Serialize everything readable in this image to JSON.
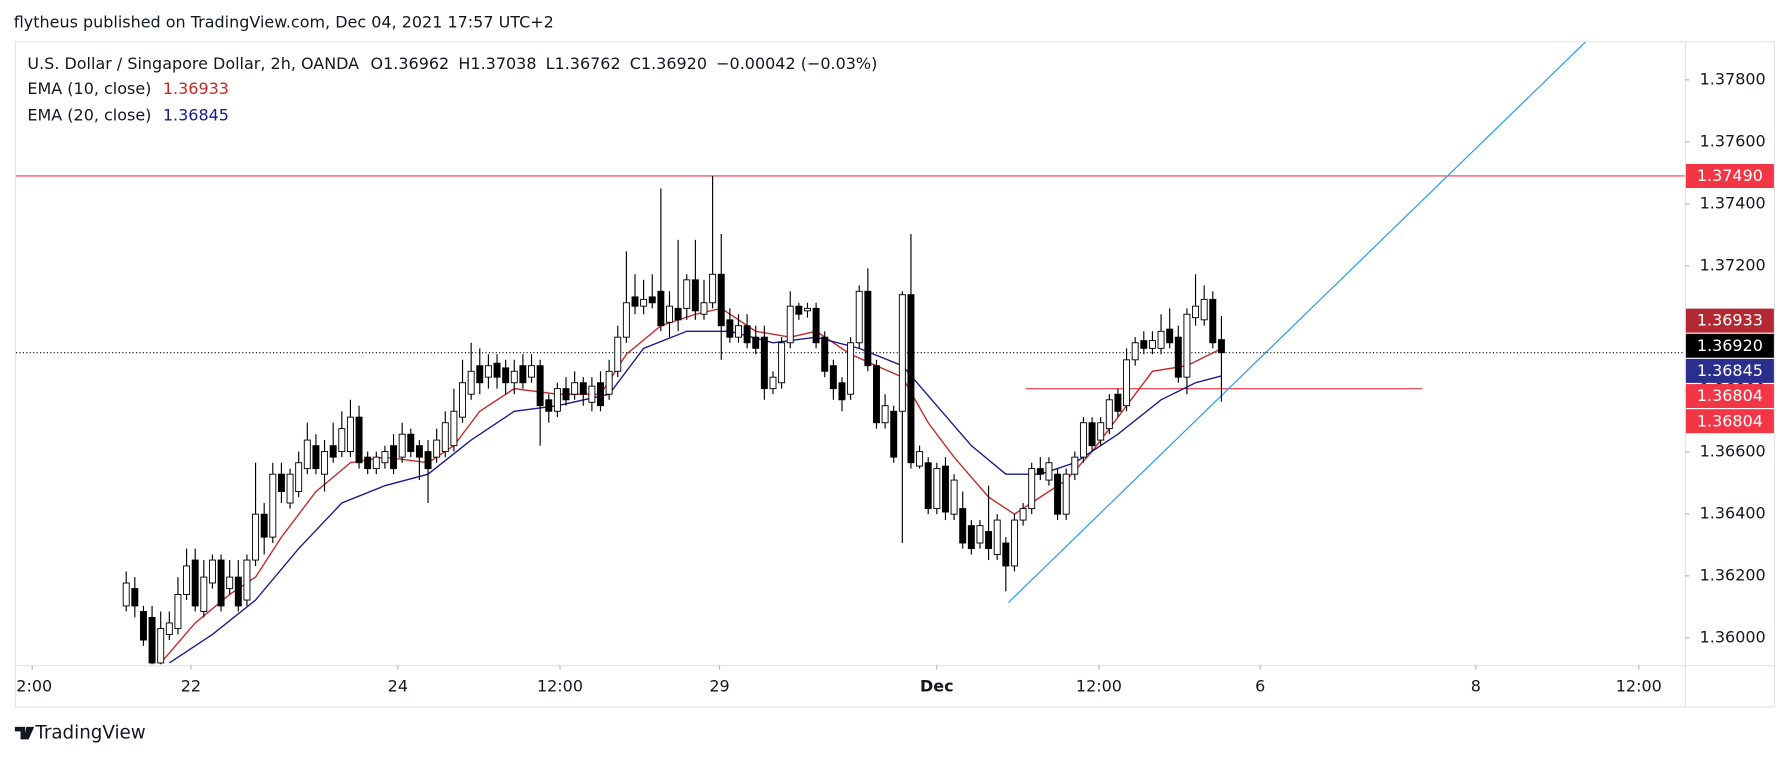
{
  "header": {
    "title": "flytheus published on TradingView.com, Dec 04, 2021 17:57 UTC+2"
  },
  "footer": {
    "brand": "TradingView"
  },
  "chart_data": {
    "type": "candlestick",
    "legend": {
      "symbol": "U.S. Dollar / Singapore Dollar, 2h, OANDA",
      "ohlc": [
        {
          "key": "O",
          "value": "1.36962"
        },
        {
          "key": "H",
          "value": "1.37038"
        },
        {
          "key": "L",
          "value": "1.36762"
        },
        {
          "key": "C",
          "value": "1.36920"
        }
      ],
      "change": "−0.00042 (−0.03%)"
    },
    "up_color": "#ffffff",
    "down_color": "#000000",
    "outline_color": "#000000",
    "candles": {
      "x": [
        10,
        11,
        12,
        13,
        14,
        15,
        16,
        17,
        18,
        19,
        20,
        21,
        22,
        23,
        24,
        25,
        26,
        27,
        28,
        29,
        30,
        31,
        32,
        33,
        34,
        35,
        36,
        37,
        38,
        39,
        40,
        41,
        42,
        43,
        44,
        45,
        46,
        47,
        48,
        49,
        50,
        51,
        52,
        53,
        54,
        55,
        56,
        57,
        58,
        59,
        60,
        61,
        62,
        63,
        64,
        65,
        66,
        67,
        68,
        69,
        70,
        71,
        72,
        73,
        74,
        75,
        76,
        77,
        78,
        79,
        80,
        81,
        82,
        83,
        84,
        85,
        86,
        87,
        88,
        89,
        90,
        91,
        92,
        93,
        94,
        95,
        96,
        97,
        98,
        99,
        100,
        101,
        102,
        103,
        104,
        105,
        106,
        107,
        108,
        109,
        110,
        111,
        112,
        113,
        114,
        115,
        116,
        117,
        118,
        119,
        120,
        121,
        122,
        123,
        124,
        125,
        126,
        127,
        128,
        129,
        130,
        131,
        132,
        133,
        134,
        135,
        136,
        137
      ],
      "open": [
        1.36103,
        1.36159,
        1.36085,
        1.36066,
        1.35919,
        1.36011,
        1.3603,
        1.3614,
        1.36251,
        1.36085,
        1.36177,
        1.36251,
        1.36159,
        1.36196,
        1.36122,
        1.36251,
        1.36399,
        1.36325,
        1.36528,
        1.36435,
        1.36472,
        1.36546,
        1.3662,
        1.36528,
        1.3662,
        1.36601,
        1.36601,
        1.36712,
        1.36583,
        1.36546,
        1.36565,
        1.3662,
        1.36583,
        1.36657,
        1.3662,
        1.36601,
        1.36583,
        1.36601,
        1.3662,
        1.36712,
        1.36786,
        1.36878,
        1.36841,
        1.36886,
        1.36871,
        1.36823,
        1.36878,
        1.36841,
        1.36878,
        1.36768,
        1.36731,
        1.36804,
        1.36786,
        1.36823,
        1.3676,
        1.36823,
        1.36786,
        1.3686,
        1.3697,
        1.371,
        1.3707,
        1.371,
        1.37118,
        1.37018,
        1.37063,
        1.37063,
        1.37155,
        1.37044,
        1.37081,
        1.37173,
        1.37026,
        1.3697,
        1.37007,
        1.3697,
        1.3697,
        1.36804,
        1.36823,
        1.36952,
        1.3707,
        1.37055,
        1.37063,
        1.3697,
        1.36878,
        1.36823,
        1.36786,
        1.36952,
        1.37118,
        1.36878,
        1.36694,
        1.36731,
        1.36731,
        1.37107,
        1.36554,
        1.36565,
        1.36417,
        1.36554,
        1.36399,
        1.36417,
        1.36362,
        1.36306,
        1.36343,
        1.36269,
        1.36306,
        1.36232,
        1.3638,
        1.36417,
        1.36546,
        1.36509,
        1.36528,
        1.36399,
        1.36528,
        1.36583,
        1.36694,
        1.36638,
        1.36675,
        1.36786,
        1.36749,
        1.36897,
        1.36959,
        1.36934,
        1.36934,
        1.36996,
        1.3697,
        1.36841,
        1.37033,
        1.37026,
        1.37092,
        1.36962
      ],
      "high": [
        1.36214,
        1.36196,
        1.36103,
        1.36103,
        1.36085,
        1.36085,
        1.36196,
        1.36288,
        1.36288,
        1.36251,
        1.36269,
        1.36269,
        1.36251,
        1.36251,
        1.36269,
        1.36565,
        1.36435,
        1.36565,
        1.36565,
        1.36546,
        1.36601,
        1.36694,
        1.36657,
        1.36638,
        1.36694,
        1.36731,
        1.36768,
        1.36749,
        1.36601,
        1.36601,
        1.3662,
        1.36657,
        1.36694,
        1.36675,
        1.36638,
        1.36638,
        1.36675,
        1.36731,
        1.36804,
        1.36897,
        1.36952,
        1.36934,
        1.36915,
        1.36915,
        1.36897,
        1.36897,
        1.36915,
        1.36915,
        1.36897,
        1.36786,
        1.36823,
        1.36841,
        1.3686,
        1.36841,
        1.36841,
        1.3686,
        1.36897,
        1.37007,
        1.37247,
        1.37173,
        1.37155,
        1.37173,
        1.3745,
        1.37118,
        1.37284,
        1.37173,
        1.37284,
        1.37155,
        1.3749,
        1.37303,
        1.37063,
        1.37044,
        1.37044,
        1.37007,
        1.37007,
        1.3686,
        1.3697,
        1.37118,
        1.37081,
        1.37081,
        1.37081,
        1.36989,
        1.36897,
        1.36841,
        1.3697,
        1.37137,
        1.37192,
        1.36897,
        1.36786,
        1.36749,
        1.37118,
        1.37303,
        1.3662,
        1.36583,
        1.36565,
        1.36583,
        1.36528,
        1.36472,
        1.3638,
        1.3638,
        1.36491,
        1.36399,
        1.36325,
        1.36399,
        1.36435,
        1.36565,
        1.36583,
        1.36583,
        1.36546,
        1.36546,
        1.36601,
        1.36712,
        1.36712,
        1.36712,
        1.36786,
        1.36804,
        1.36934,
        1.3697,
        1.36989,
        1.36989,
        1.37044,
        1.37063,
        1.37007,
        1.37063,
        1.37173,
        1.37137,
        1.37118,
        1.37038
      ],
      "low": [
        1.36085,
        1.36066,
        1.35974,
        1.35915,
        1.35915,
        1.35993,
        1.36011,
        1.36122,
        1.36085,
        1.36066,
        1.36159,
        1.36085,
        1.3614,
        1.36085,
        1.36103,
        1.36232,
        1.36269,
        1.36306,
        1.36435,
        1.36417,
        1.36454,
        1.36528,
        1.36528,
        1.36472,
        1.36565,
        1.36583,
        1.36583,
        1.36546,
        1.36528,
        1.36528,
        1.36546,
        1.36528,
        1.36565,
        1.36583,
        1.36509,
        1.36435,
        1.36565,
        1.36583,
        1.36601,
        1.36694,
        1.36768,
        1.36786,
        1.36804,
        1.36804,
        1.36786,
        1.36786,
        1.36804,
        1.36823,
        1.3662,
        1.36694,
        1.36712,
        1.36749,
        1.36768,
        1.36749,
        1.36731,
        1.36731,
        1.36768,
        1.36841,
        1.36952,
        1.37044,
        1.37044,
        1.37063,
        1.36989,
        1.3697,
        1.36989,
        1.37026,
        1.37026,
        1.37026,
        1.37063,
        1.36897,
        1.36952,
        1.36952,
        1.36934,
        1.36915,
        1.36768,
        1.36786,
        1.36804,
        1.36934,
        1.37026,
        1.37033,
        1.36934,
        1.36841,
        1.36768,
        1.36731,
        1.36768,
        1.36934,
        1.3686,
        1.36675,
        1.36675,
        1.36565,
        1.36306,
        1.36546,
        1.36546,
        1.36399,
        1.36399,
        1.3638,
        1.3638,
        1.36288,
        1.36269,
        1.36288,
        1.36251,
        1.36251,
        1.3615,
        1.36214,
        1.36362,
        1.36399,
        1.36509,
        1.36491,
        1.3638,
        1.3638,
        1.36509,
        1.36565,
        1.36601,
        1.3662,
        1.36657,
        1.36712,
        1.36731,
        1.36878,
        1.36915,
        1.36915,
        1.36915,
        1.36934,
        1.36823,
        1.36786,
        1.37007,
        1.37007,
        1.36934,
        1.36762
      ],
      "close": [
        1.36177,
        1.36103,
        1.35993,
        1.35919,
        1.3603,
        1.36048,
        1.3614,
        1.36232,
        1.36103,
        1.36196,
        1.36251,
        1.36103,
        1.36196,
        1.36103,
        1.36251,
        1.36399,
        1.36325,
        1.36528,
        1.36472,
        1.36528,
        1.36565,
        1.36638,
        1.36546,
        1.36601,
        1.36583,
        1.36675,
        1.36712,
        1.36565,
        1.36546,
        1.36583,
        1.36601,
        1.36546,
        1.36657,
        1.36601,
        1.36583,
        1.36546,
        1.36638,
        1.36694,
        1.36731,
        1.36823,
        1.3686,
        1.36823,
        1.36878,
        1.36841,
        1.36823,
        1.3686,
        1.36823,
        1.36878,
        1.36749,
        1.36731,
        1.36804,
        1.36768,
        1.36823,
        1.36786,
        1.36812,
        1.36749,
        1.3686,
        1.3697,
        1.37081,
        1.3707,
        1.37092,
        1.37081,
        1.37007,
        1.3707,
        1.37026,
        1.37155,
        1.37055,
        1.37081,
        1.37173,
        1.37007,
        1.3697,
        1.37007,
        1.36952,
        1.36934,
        1.36804,
        1.36841,
        1.36952,
        1.3707,
        1.37044,
        1.37063,
        1.36952,
        1.3686,
        1.36804,
        1.36768,
        1.36952,
        1.37118,
        1.36878,
        1.36694,
        1.36749,
        1.36583,
        1.37107,
        1.36565,
        1.36601,
        1.36417,
        1.36546,
        1.36406,
        1.36509,
        1.36306,
        1.36288,
        1.36362,
        1.36288,
        1.3638,
        1.36232,
        1.3638,
        1.36417,
        1.36546,
        1.36528,
        1.36565,
        1.36399,
        1.36528,
        1.36583,
        1.36694,
        1.3662,
        1.36694,
        1.36768,
        1.36731,
        1.36897,
        1.36952,
        1.36934,
        1.36959,
        1.36989,
        1.36952,
        1.36841,
        1.37044,
        1.3707,
        1.37092,
        1.36952,
        1.3692
      ]
    },
    "series": [
      {
        "name": "EMA (10, close)",
        "color": "#c62828",
        "legend_value": "1.36933",
        "x": [
          14,
          18,
          22,
          25,
          28,
          32,
          36,
          40,
          45,
          48,
          51,
          55,
          60,
          65,
          68,
          72,
          76,
          79,
          83,
          87,
          90,
          94,
          97,
          100,
          103,
          106,
          110,
          113,
          116,
          119,
          122,
          126,
          129,
          133,
          137
        ],
        "values": [
          1.35919,
          1.36048,
          1.3614,
          1.36196,
          1.36325,
          1.36472,
          1.36565,
          1.36583,
          1.36565,
          1.3662,
          1.36731,
          1.36804,
          1.36786,
          1.36786,
          1.36915,
          1.37007,
          1.37044,
          1.37063,
          1.36989,
          1.3697,
          1.36989,
          1.36915,
          1.36878,
          1.36841,
          1.36694,
          1.36583,
          1.36454,
          1.36399,
          1.36454,
          1.36509,
          1.36601,
          1.36749,
          1.3686,
          1.36878,
          1.36933
        ]
      },
      {
        "name": "EMA (20, close)",
        "color": "#1a1a8c",
        "legend_value": "1.36845",
        "x": [
          15,
          20,
          25,
          30,
          35,
          40,
          45,
          50,
          55,
          60,
          66,
          70,
          75,
          80,
          85,
          90,
          95,
          100,
          104,
          108,
          112,
          116,
          120,
          125,
          130,
          134,
          137
        ],
        "values": [
          1.35919,
          1.36011,
          1.36122,
          1.36288,
          1.36435,
          1.36491,
          1.36528,
          1.36638,
          1.36731,
          1.36749,
          1.36786,
          1.36934,
          1.36989,
          1.36989,
          1.36952,
          1.3697,
          1.36934,
          1.36878,
          1.36749,
          1.3662,
          1.36528,
          1.36528,
          1.36565,
          1.36657,
          1.36768,
          1.36823,
          1.36845
        ]
      }
    ],
    "drawings": [
      {
        "kind": "horizontal",
        "value": 1.3749,
        "color": "#f23645"
      },
      {
        "kind": "segment",
        "x": [
          114.3,
          160.3
        ],
        "values": [
          1.36804,
          1.36804
        ],
        "color": "#f23645"
      },
      {
        "kind": "segment",
        "x": [
          112.3,
          179.2
        ],
        "values": [
          1.36114,
          1.37922
        ],
        "color": "#2196f3"
      }
    ],
    "price_labels_top": [
      {
        "value": 1.3749,
        "label": "1.37490",
        "color": "#f23645"
      }
    ],
    "price_labels": [
      {
        "value": 1.36933,
        "label": "1.36933",
        "color": "#b22833"
      },
      {
        "value": 1.3692,
        "label": "1.36920",
        "color": "#000000",
        "line": "dotted"
      },
      {
        "value": 1.36845,
        "label": "1.36845",
        "color": "#2a2e8c"
      },
      {
        "value": 1.36804,
        "label": "1.36804",
        "color": "#f23645"
      },
      {
        "value": 1.36804,
        "label": "1.36804",
        "color": "#f23645"
      }
    ],
    "xlim": [
      -2.78,
      190.73
    ],
    "xticks": [
      {
        "value": -0.9,
        "label": "2:00"
      },
      {
        "value": 17.5,
        "label": "22"
      },
      {
        "value": 41.5,
        "label": "24"
      },
      {
        "value": 60.3,
        "label": "12:00"
      },
      {
        "value": 78.8,
        "label": "29"
      },
      {
        "value": 104,
        "label": "Dec"
      },
      {
        "value": 122.8,
        "label": "12:00"
      },
      {
        "value": 141.5,
        "label": "6"
      },
      {
        "value": 166.5,
        "label": "8"
      },
      {
        "value": 185.4,
        "label": "12:00"
      }
    ],
    "ylim": [
      1.35912,
      1.37925
    ],
    "yticks": [
      {
        "value": 1.36,
        "label": "1.36000"
      },
      {
        "value": 1.362,
        "label": "1.36200"
      },
      {
        "value": 1.364,
        "label": "1.36400"
      },
      {
        "value": 1.366,
        "label": "1.36600"
      },
      {
        "value": 1.368,
        "label": "1.36800"
      },
      {
        "value": 1.37,
        "label": "1.37000"
      },
      {
        "value": 1.372,
        "label": "1.37200"
      },
      {
        "value": 1.374,
        "label": "1.37400"
      },
      {
        "value": 1.376,
        "label": "1.37600"
      },
      {
        "value": 1.378,
        "label": "1.37800"
      }
    ],
    "grid": false
  }
}
